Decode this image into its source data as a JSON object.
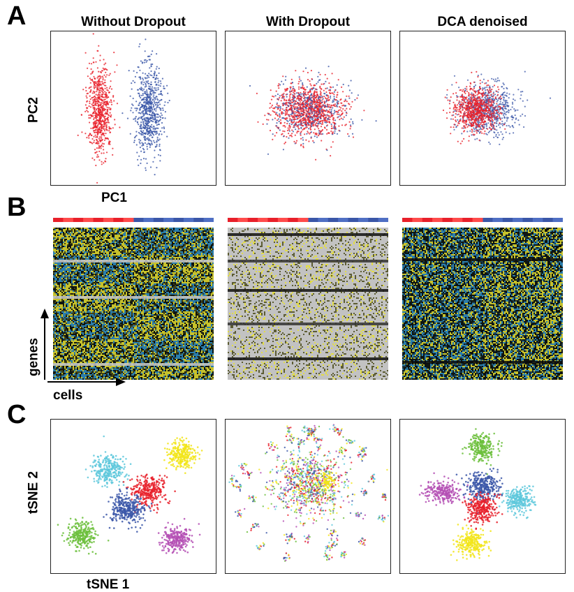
{
  "panels": {
    "a_letter": "A",
    "b_letter": "B",
    "c_letter": "C"
  },
  "columns": {
    "col1": "Without Dropout",
    "col2": "With Dropout",
    "col3": "DCA denoised"
  },
  "axes": {
    "pc2": "PC2",
    "pc1": "PC1",
    "genes": "genes",
    "cells": "cells",
    "tsne2": "tSNE 2",
    "tsne1": "tSNE 1"
  },
  "colors": {
    "red": "#e8202a",
    "blue": "#3a56a8",
    "cyan": "#5ec8dc",
    "green": "#6cbf3c",
    "yellow": "#f2e51a",
    "magenta": "#b44fb4",
    "heat_bg_dark": "#0e1410",
    "heat_blue": "#2f8fc8",
    "heat_yellow": "#e8e030",
    "heat_olive": "#4a4a1a",
    "heat_grey": "#c2c2c2"
  }
}
